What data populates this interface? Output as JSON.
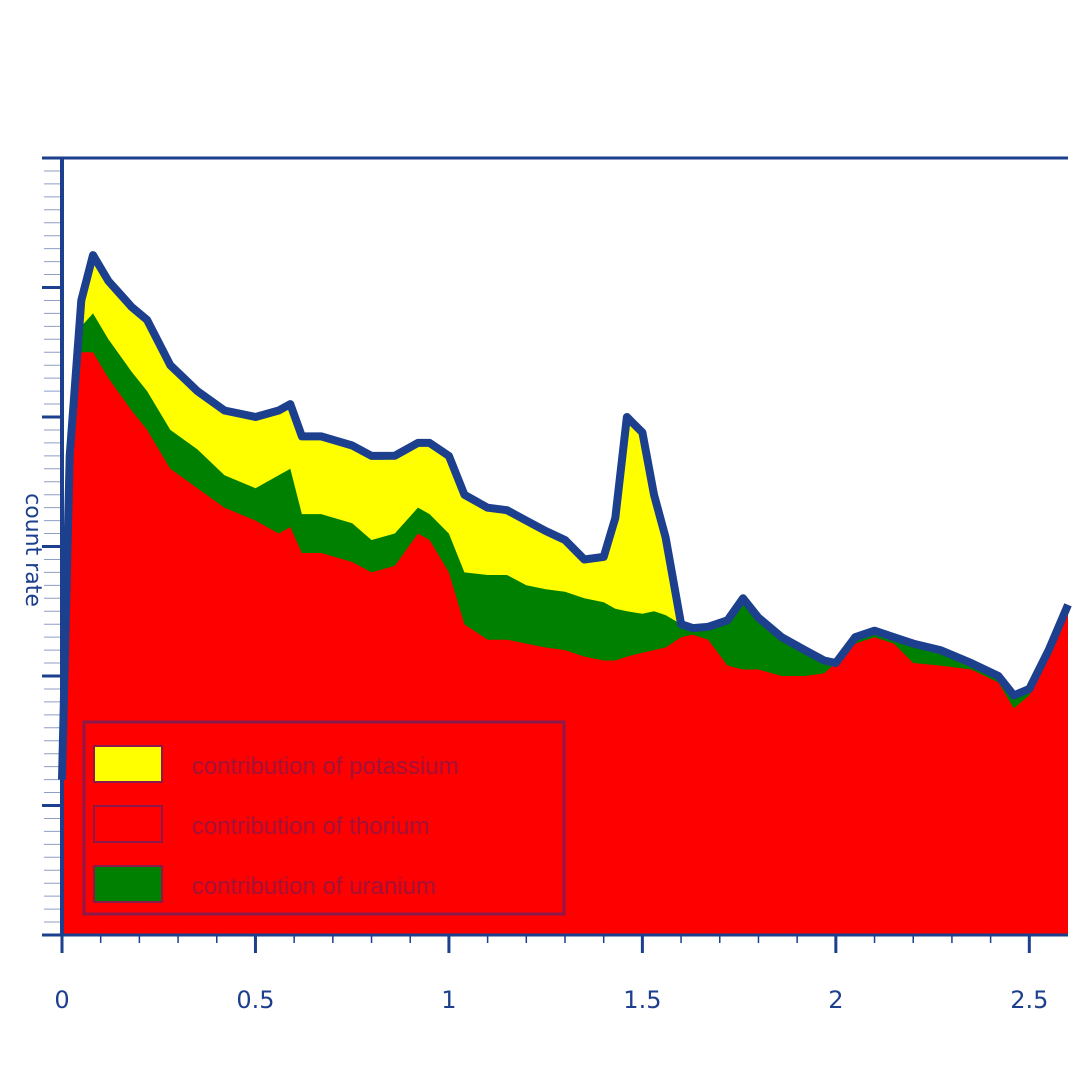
{
  "chart_data": {
    "type": "area",
    "stacked": true,
    "ylabel": "count rate",
    "xlabel": "",
    "xlim": [
      0,
      2.6
    ],
    "x_ticks": [
      "0",
      "0.5",
      "1",
      "1.5",
      "2",
      "2.5"
    ],
    "y_tick_labels_shown": false,
    "grid": false,
    "legend_placement": "bottom-left",
    "x": [
      0.0,
      0.02,
      0.05,
      0.08,
      0.12,
      0.18,
      0.22,
      0.28,
      0.35,
      0.42,
      0.5,
      0.56,
      0.59,
      0.62,
      0.67,
      0.75,
      0.8,
      0.86,
      0.92,
      0.95,
      1.0,
      1.04,
      1.1,
      1.15,
      1.2,
      1.25,
      1.3,
      1.35,
      1.4,
      1.43,
      1.46,
      1.5,
      1.53,
      1.56,
      1.6,
      1.63,
      1.67,
      1.72,
      1.76,
      1.8,
      1.86,
      1.92,
      1.97,
      2.0,
      2.05,
      2.1,
      2.15,
      2.2,
      2.27,
      2.35,
      2.42,
      2.46,
      2.5,
      2.55,
      2.6
    ],
    "series": [
      {
        "name": "contribution of thorium",
        "color": "#ff0000",
        "values": [
          1.2,
          3.7,
          4.5,
          4.5,
          4.3,
          4.05,
          3.9,
          3.6,
          3.45,
          3.3,
          3.2,
          3.1,
          3.15,
          2.95,
          2.95,
          2.88,
          2.8,
          2.85,
          3.1,
          3.05,
          2.8,
          2.4,
          2.28,
          2.28,
          2.25,
          2.22,
          2.2,
          2.15,
          2.12,
          2.12,
          2.15,
          2.18,
          2.2,
          2.22,
          2.3,
          2.32,
          2.28,
          2.08,
          2.05,
          2.05,
          2.0,
          2.0,
          2.02,
          2.1,
          2.25,
          2.3,
          2.25,
          2.1,
          2.08,
          2.05,
          1.95,
          1.75,
          1.85,
          2.2,
          2.55
        ]
      },
      {
        "name": "contribution of uranium",
        "color": "#008000",
        "values": [
          0.0,
          0.0,
          0.2,
          0.3,
          0.3,
          0.3,
          0.3,
          0.3,
          0.3,
          0.25,
          0.25,
          0.45,
          0.45,
          0.3,
          0.3,
          0.3,
          0.25,
          0.25,
          0.2,
          0.2,
          0.3,
          0.4,
          0.5,
          0.5,
          0.45,
          0.45,
          0.45,
          0.45,
          0.45,
          0.4,
          0.35,
          0.3,
          0.3,
          0.25,
          0.1,
          0.05,
          0.1,
          0.35,
          0.55,
          0.4,
          0.3,
          0.2,
          0.1,
          0.0,
          0.05,
          0.05,
          0.05,
          0.15,
          0.12,
          0.05,
          0.05,
          0.1,
          0.05,
          0.0,
          0.0
        ]
      },
      {
        "name": "contribution of potassium",
        "color": "#ffff00",
        "values": [
          0.0,
          0.0,
          0.2,
          0.45,
          0.45,
          0.5,
          0.55,
          0.5,
          0.45,
          0.5,
          0.55,
          0.5,
          0.5,
          0.6,
          0.6,
          0.6,
          0.65,
          0.6,
          0.5,
          0.55,
          0.6,
          0.6,
          0.52,
          0.5,
          0.5,
          0.45,
          0.4,
          0.3,
          0.35,
          0.7,
          1.5,
          1.4,
          0.9,
          0.6,
          0.0,
          0.0,
          0.0,
          0.0,
          0.0,
          0.0,
          0.0,
          0.0,
          0.0,
          0.0,
          0.0,
          0.0,
          0.0,
          0.0,
          0.0,
          0.0,
          0.0,
          0.0,
          0.0,
          0.0,
          0.0
        ]
      }
    ],
    "legend": [
      {
        "label": "contribution of potassium",
        "color": "#ffff00"
      },
      {
        "label": "contribution of thorium",
        "color": "#ff0000"
      },
      {
        "label": "contribution of uranium",
        "color": "#008000"
      }
    ],
    "colors": {
      "axis": "#1c3f8e",
      "outline": "#1c3f8e",
      "legend_text": "#a01238",
      "legend_border": "#8b1a4a"
    }
  }
}
